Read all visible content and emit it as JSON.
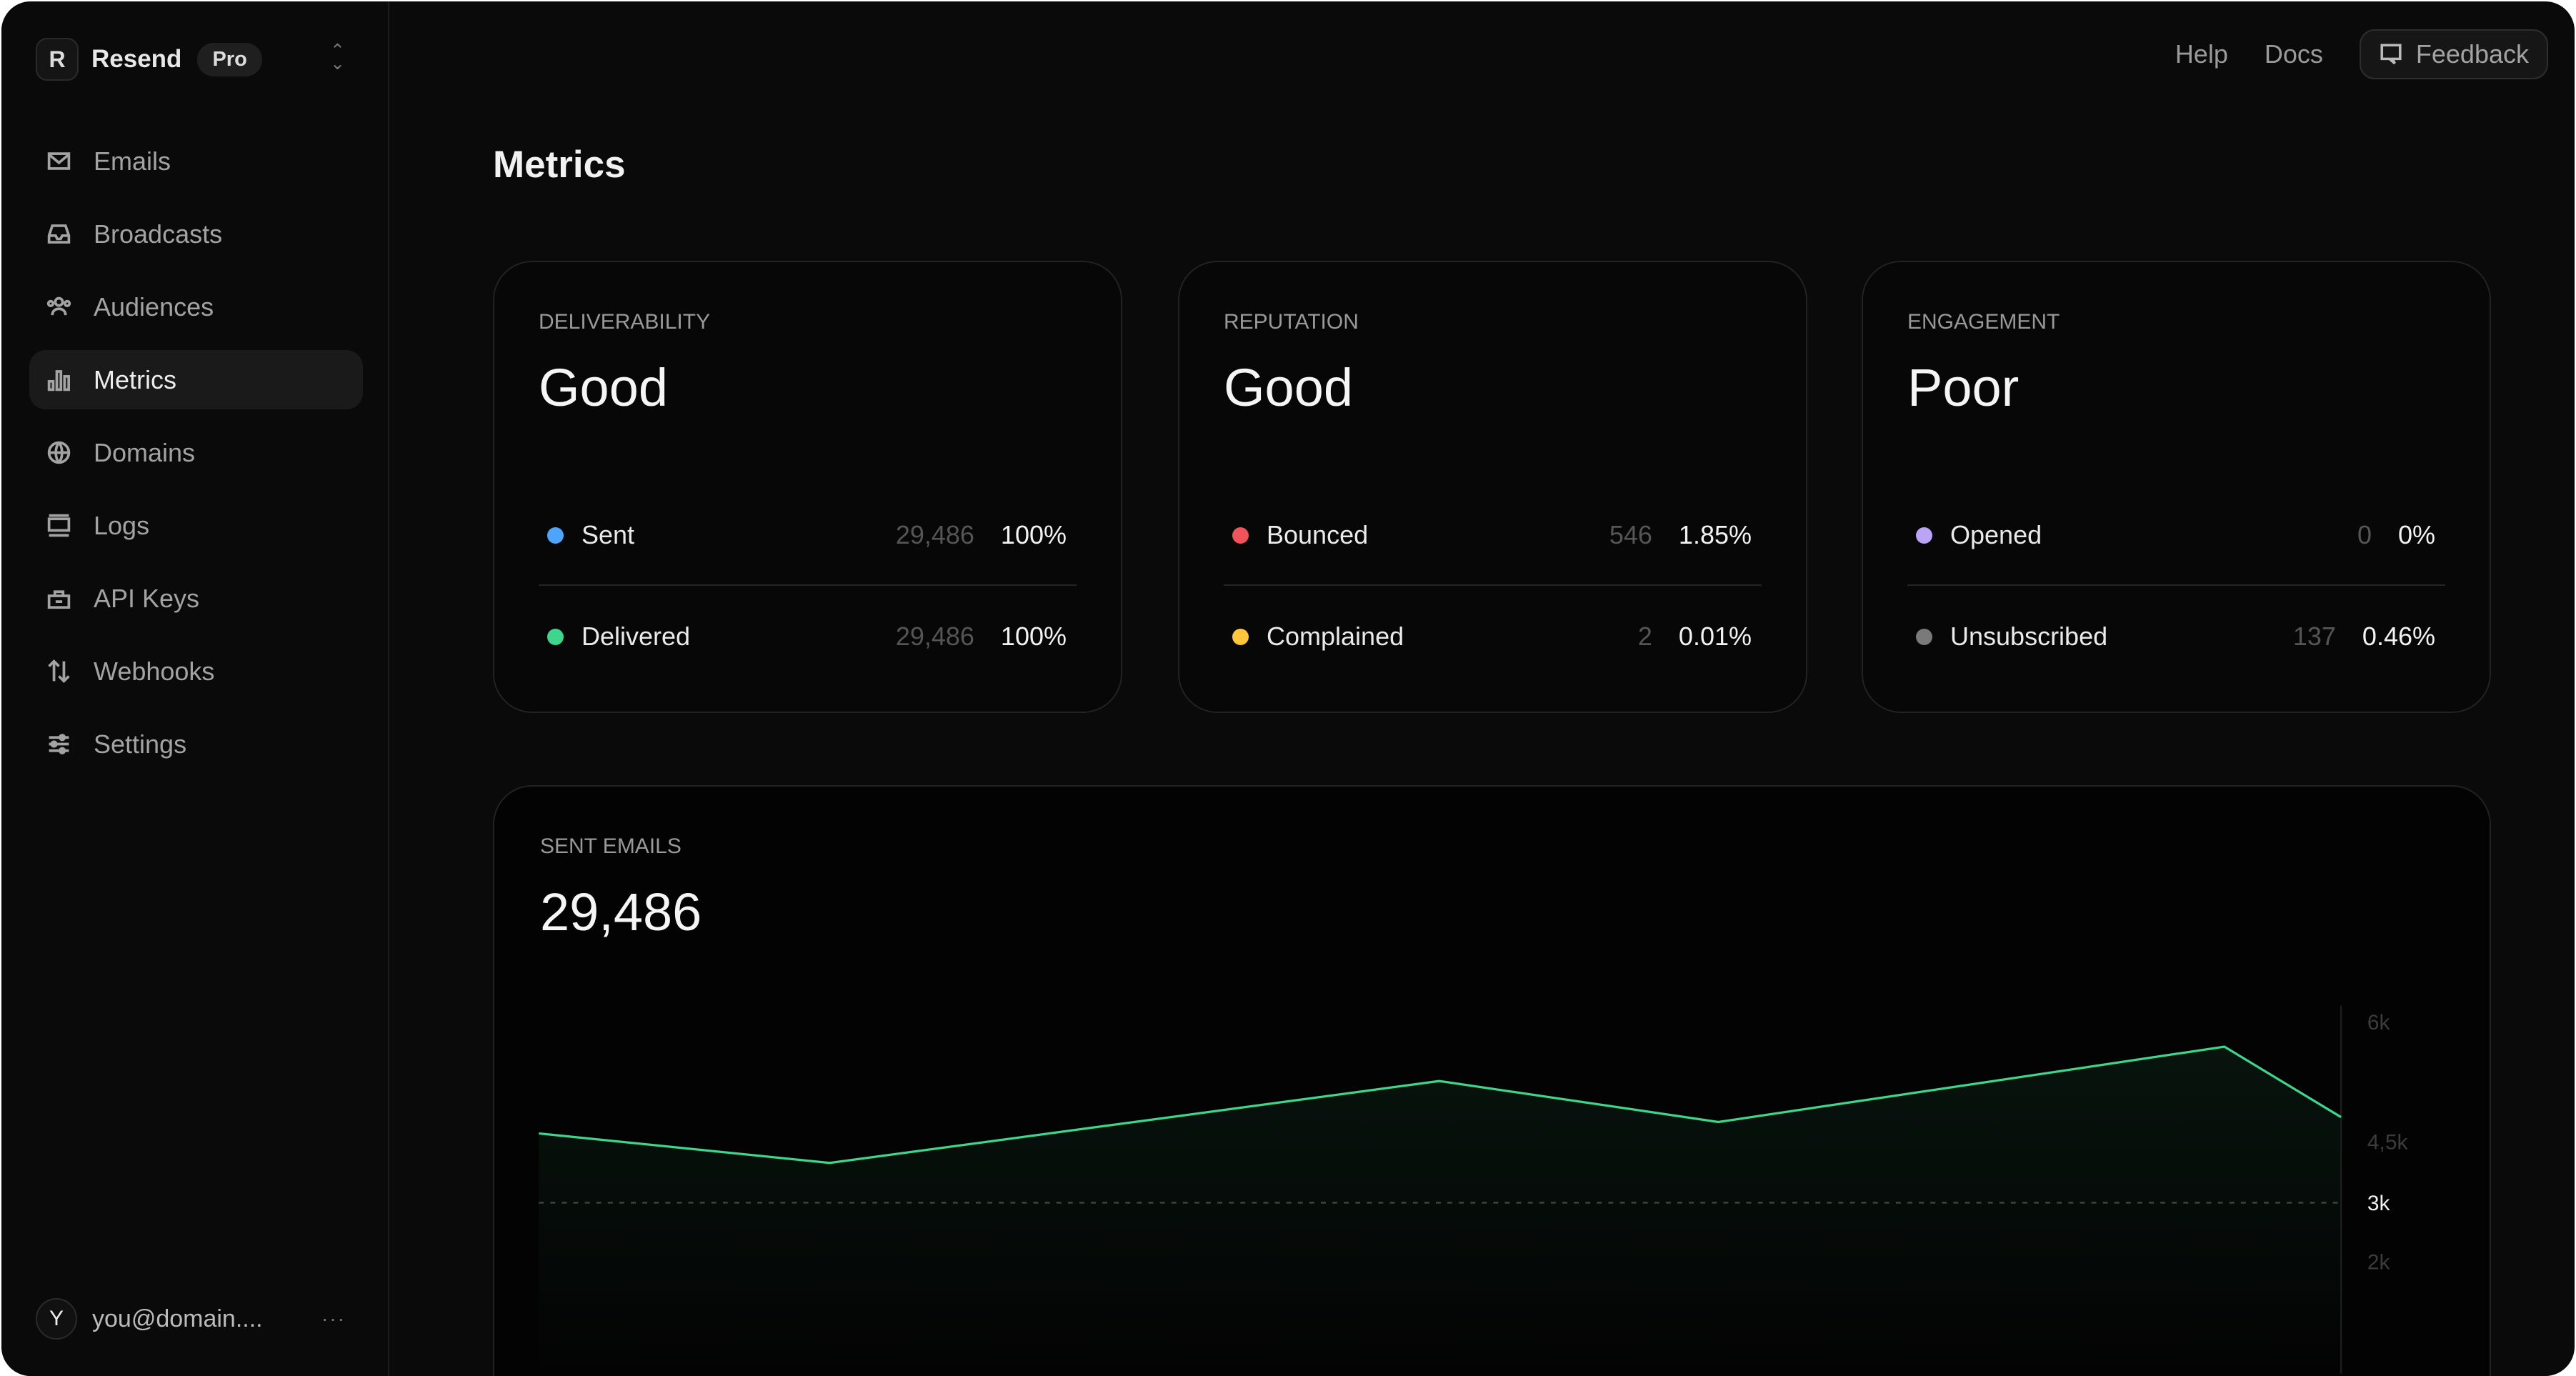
{
  "app": {
    "name": "Resend",
    "plan": "Pro"
  },
  "sidebar": {
    "items": [
      {
        "label": "Emails",
        "icon": "mail-icon"
      },
      {
        "label": "Broadcasts",
        "icon": "inbox-icon"
      },
      {
        "label": "Audiences",
        "icon": "users-icon"
      },
      {
        "label": "Metrics",
        "icon": "bar-chart-icon",
        "active": true
      },
      {
        "label": "Domains",
        "icon": "globe-icon"
      },
      {
        "label": "Logs",
        "icon": "logs-icon"
      },
      {
        "label": "API Keys",
        "icon": "lock-icon"
      },
      {
        "label": "Webhooks",
        "icon": "arrows-up-down-icon"
      },
      {
        "label": "Settings",
        "icon": "sliders-icon"
      }
    ],
    "user": {
      "initial": "Y",
      "email": "you@domain....",
      "more": "···"
    }
  },
  "header": {
    "help": "Help",
    "docs": "Docs",
    "feedback": "Feedback"
  },
  "page": {
    "title": "Metrics"
  },
  "cards": [
    {
      "label": "DELIVERABILITY",
      "status": "Good",
      "rows": [
        {
          "label": "Sent",
          "count": "29,486",
          "pct": "100%",
          "color": "#4ea5ff"
        },
        {
          "label": "Delivered",
          "count": "29,486",
          "pct": "100%",
          "color": "#3dd68c"
        }
      ]
    },
    {
      "label": "REPUTATION",
      "status": "Good",
      "rows": [
        {
          "label": "Bounced",
          "count": "546",
          "pct": "1.85%",
          "color": "#f0545b"
        },
        {
          "label": "Complained",
          "count": "2",
          "pct": "0.01%",
          "color": "#ffc53d"
        }
      ]
    },
    {
      "label": "ENGAGEMENT",
      "status": "Poor",
      "rows": [
        {
          "label": "Opened",
          "count": "0",
          "pct": "0%",
          "color": "#b9a4f5"
        },
        {
          "label": "Unsubscribed",
          "count": "137",
          "pct": "0.46%",
          "color": "#7a7a7a"
        }
      ]
    }
  ],
  "sent_emails": {
    "label": "SENT EMAILS",
    "total": "29,486"
  },
  "chart_data": {
    "type": "area",
    "values": [
      4150,
      3660,
      5020,
      4340,
      5590,
      4420
    ],
    "y_ticks": [
      "6k",
      "4,5k",
      "3k",
      "2k"
    ],
    "highlight_tick": "3k",
    "reference_line": 3000,
    "ylim": [
      0,
      6000
    ],
    "line_color": "#3dd68c",
    "grid": false
  }
}
